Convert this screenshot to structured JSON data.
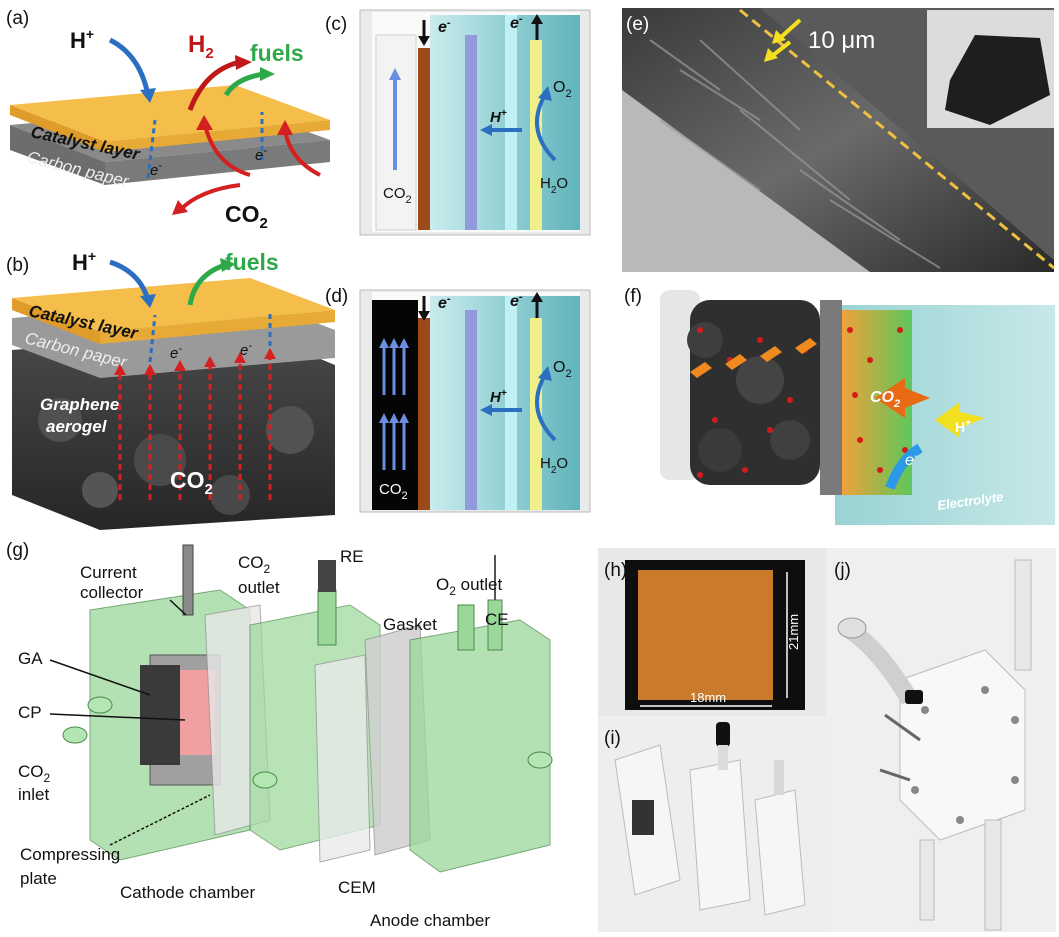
{
  "panels": {
    "a": {
      "letter": "(a)",
      "h_plus": "H",
      "h_plus_sup": "+",
      "h2": "H",
      "h2_sub": "2",
      "fuels": "fuels",
      "catalyst": "Catalyst layer",
      "carbon": "Carbon paper",
      "e1": "e",
      "e1_sup": "-",
      "e2": "e",
      "e2_sup": "-",
      "co2": "CO",
      "co2_sub": "2"
    },
    "b": {
      "letter": "(b)",
      "h_plus": "H",
      "h_plus_sup": "+",
      "fuels": "fuels",
      "catalyst": "Catalyst layer",
      "carbon": "Carbon paper",
      "e1": "e",
      "e1_sup": "-",
      "e2": "e",
      "e2_sup": "-",
      "graphene1": "Graphene",
      "graphene2": "aerogel",
      "co2": "CO",
      "co2_sub": "2"
    },
    "c": {
      "letter": "(c)",
      "e_left": "e",
      "e_left_sup": "-",
      "e_right": "e",
      "e_right_sup": "-",
      "co2": "CO",
      "co2_sub": "2",
      "h_plus": "H",
      "h_plus_sup": "+",
      "o2": "O",
      "o2_sub": "2",
      "h2o": "H",
      "h2o_sub": "2",
      "h2o_end": "O"
    },
    "d": {
      "letter": "(d)",
      "e_left": "e",
      "e_left_sup": "-",
      "e_right": "e",
      "e_right_sup": "-",
      "co2": "CO",
      "co2_sub": "2",
      "h_plus": "H",
      "h_plus_sup": "+",
      "o2": "O",
      "o2_sub": "2",
      "h2o": "H",
      "h2o_sub": "2",
      "h2o_end": "O"
    },
    "e": {
      "letter": "(e)",
      "scale": "10 μm"
    },
    "f": {
      "letter": "(f)",
      "co2": "CO",
      "co2_sub": "2",
      "h_plus": "H",
      "h_plus_sup": "+",
      "e": "e",
      "e_sup": "-",
      "electrolyte": "Electrolyte"
    },
    "g": {
      "letter": "(g)",
      "current1": "Current",
      "current2": "collector",
      "co2out1": "CO",
      "co2out_sub": "2",
      "co2out2": "outlet",
      "re": "RE",
      "gasket": "Gasket",
      "o2out": "O",
      "o2out_sub": "2",
      "o2out_end": " outlet",
      "ce": "CE",
      "ga": "GA",
      "cp": "CP",
      "co2in1": "CO",
      "co2in_sub": "2",
      "co2in2": "inlet",
      "comp1": "Compressing",
      "comp2": "plate",
      "cathode": "Cathode chamber",
      "cem": "CEM",
      "anode": "Anode chamber"
    },
    "h": {
      "letter": "(h)",
      "dim_h": "21mm",
      "dim_w": "18mm"
    },
    "i": {
      "letter": "(i)"
    },
    "j": {
      "letter": "(j)"
    }
  },
  "colors": {
    "catalyst": "#f2b541",
    "carbon": "#9a9a9a",
    "aerogel": "#3a3a3a",
    "electrolyte": "#9fd3d6",
    "copper": "#9c4a1a",
    "chamber_green": "#8fd68f",
    "proton_blue": "#2b6fc0",
    "co2_red": "#d42020",
    "fuels_green": "#2fa84a",
    "h2_red": "#c01818"
  }
}
